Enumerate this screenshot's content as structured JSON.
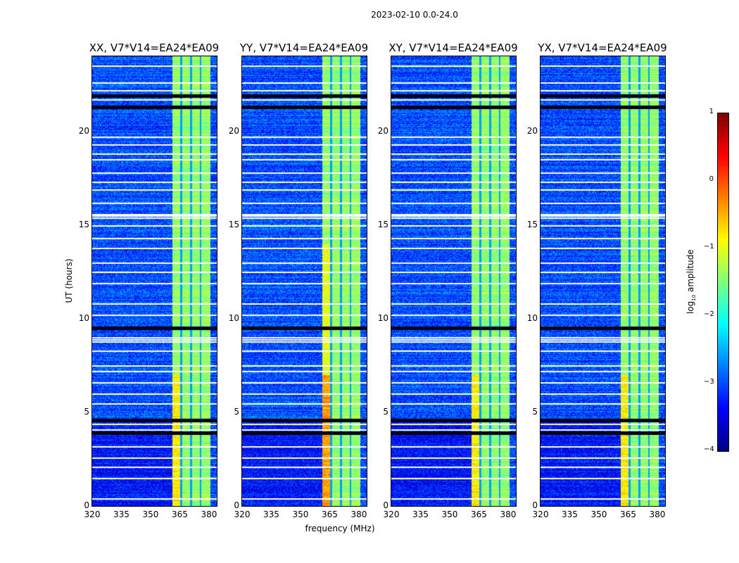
{
  "chart_data": {
    "type": "heatmap",
    "title": "2023-02-10 0.0-24.0",
    "xlabel": "frequency (MHz)",
    "ylabel": "UT (hours)",
    "xlim": [
      320,
      384
    ],
    "ylim": [
      0,
      24
    ],
    "xticks": [
      "320",
      "335",
      "350",
      "365",
      "380"
    ],
    "xtick_values": [
      320,
      335,
      350,
      365,
      380
    ],
    "yticks": [
      "0",
      "5",
      "10",
      "15",
      "20"
    ],
    "ytick_values": [
      0,
      5,
      10,
      15,
      20
    ],
    "panels": [
      {
        "title": "XX, V7*V14=EA24*EA09"
      },
      {
        "title": "YY, V7*V14=EA24*EA09"
      },
      {
        "title": "XY, V7*V14=EA24*EA09"
      },
      {
        "title": "YX, V7*V14=EA24*EA09"
      }
    ],
    "background_log_amplitude": -3.0,
    "band_mhz": [
      361,
      380.5
    ],
    "band_log_amplitude": -1.4,
    "band_dark_stripes_mhz": [
      365.5,
      370.5,
      375.5
    ],
    "flagged_rows_hours": [
      0.4,
      1.5,
      2.1,
      2.6,
      3.2,
      4.1,
      4.4,
      5.5,
      6.0,
      6.6,
      7.2,
      7.5,
      8.3,
      8.8,
      8.9,
      9.0,
      10.2,
      10.8,
      11.9,
      12.5,
      13.0,
      13.8,
      14.3,
      15.0,
      15.4,
      15.5,
      15.6,
      16.2,
      16.9,
      17.3,
      17.8,
      18.5,
      18.8,
      19.3,
      19.7,
      21.7,
      22.2,
      22.6,
      23.5
    ],
    "dark_rows_hours": [
      3.9,
      4.6,
      9.5,
      21.3,
      21.9
    ],
    "colorbar": {
      "label": "log10 amplitude",
      "label_main": "log",
      "label_sub": "10",
      "label_rest": " amplitude",
      "range": [
        -4,
        1
      ],
      "ticks": [
        "1",
        "0",
        "−1",
        "−2",
        "−3",
        "−4"
      ],
      "tick_values": [
        1,
        0,
        -1,
        -2,
        -3,
        -4
      ],
      "colormap": "jet"
    }
  }
}
